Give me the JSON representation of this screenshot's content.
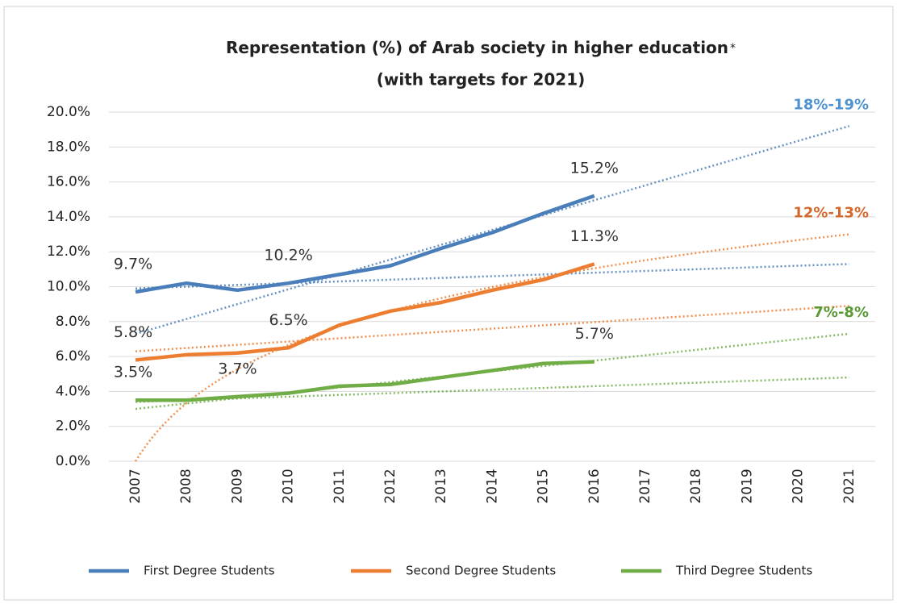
{
  "chart_data": {
    "type": "line",
    "title": "Representation (%) of Arab society in higher education",
    "title_mark": "*",
    "subtitle": "(with targets for 2021)",
    "categories": [
      "2007",
      "2008",
      "2009",
      "2010",
      "2011",
      "2012",
      "2013",
      "2014",
      "2015",
      "2016",
      "2017",
      "2018",
      "2019",
      "2020",
      "2021"
    ],
    "ylim": [
      0,
      20
    ],
    "yticks": [
      {
        "value": 0,
        "label": "0.0%"
      },
      {
        "value": 2,
        "label": "2.0%"
      },
      {
        "value": 4,
        "label": "4.0%"
      },
      {
        "value": 6,
        "label": "6.0%"
      },
      {
        "value": 8,
        "label": "8.0%"
      },
      {
        "value": 10,
        "label": "10.0%"
      },
      {
        "value": 12,
        "label": "12.0%"
      },
      {
        "value": 14,
        "label": "14.0%"
      },
      {
        "value": 16,
        "label": "16.0%"
      },
      {
        "value": 18,
        "label": "18.0%"
      },
      {
        "value": 20,
        "label": "20.0%"
      }
    ],
    "grid": true,
    "legend": "bottom",
    "series": [
      {
        "name": "First Degree Students",
        "color": "#4a7ebb",
        "target_color": "#4f93d0",
        "target": "18%-19%",
        "values": [
          9.7,
          10.2,
          9.8,
          10.2,
          10.7,
          11.2,
          12.2,
          13.1,
          14.2,
          15.2,
          null,
          null,
          null,
          null,
          null
        ],
        "value_labels": [
          "9.7%",
          null,
          null,
          "10.2%",
          null,
          null,
          null,
          null,
          null,
          "15.2%",
          null,
          null,
          null,
          null,
          null
        ],
        "trends": [
          {
            "fit": "linear",
            "values": [
              7.3,
              19.2
            ]
          },
          {
            "fit": "linear",
            "values": [
              9.9,
              11.3
            ]
          }
        ]
      },
      {
        "name": "Second Degree Students",
        "color": "#ed7d31",
        "target_color": "#d3692d",
        "target": "12%-13%",
        "values": [
          5.8,
          6.1,
          6.2,
          6.5,
          7.8,
          8.6,
          9.1,
          9.8,
          10.4,
          11.3,
          null,
          null,
          null,
          null,
          null
        ],
        "value_labels": [
          "5.8%",
          null,
          null,
          "6.5%",
          null,
          null,
          null,
          null,
          null,
          "11.3%",
          null,
          null,
          null,
          null,
          null
        ],
        "trends": [
          {
            "fit": "log",
            "values": [
              0,
              13.0
            ]
          },
          {
            "fit": "linear",
            "values": [
              6.3,
              8.9
            ]
          }
        ]
      },
      {
        "name": "Third Degree Students",
        "color": "#71ad47",
        "target_color": "#5a9a35",
        "target": "7%-8%",
        "values": [
          3.5,
          3.5,
          3.7,
          3.9,
          4.3,
          4.4,
          4.8,
          5.2,
          5.6,
          5.7,
          null,
          null,
          null,
          null,
          null
        ],
        "value_labels": [
          "3.5%",
          null,
          "3.7%",
          null,
          null,
          null,
          null,
          null,
          null,
          "5.7%",
          null,
          null,
          null,
          null,
          null
        ],
        "trends": [
          {
            "fit": "linear",
            "values": [
              3.0,
              7.3
            ]
          },
          {
            "fit": "linear",
            "values": [
              3.4,
              4.8
            ]
          }
        ]
      }
    ]
  }
}
